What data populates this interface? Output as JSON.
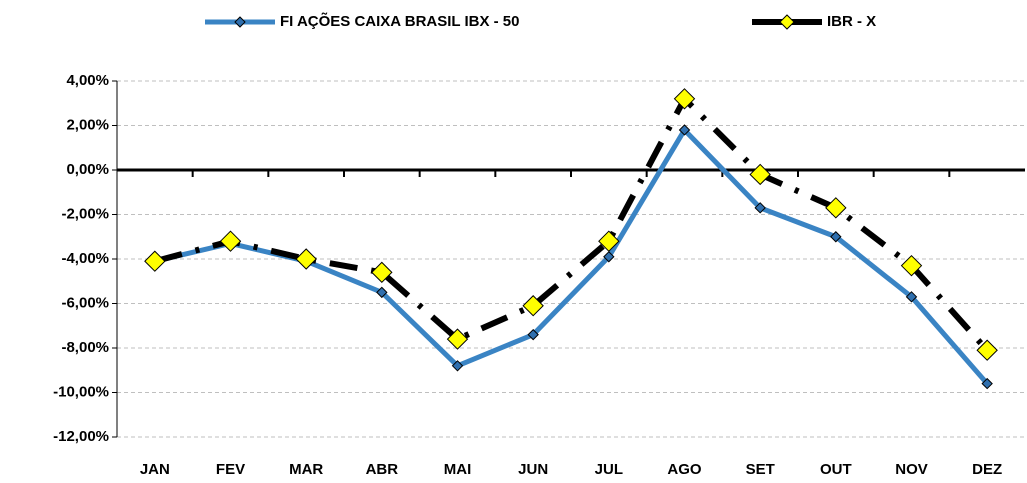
{
  "chart_data": {
    "type": "line",
    "categories": [
      "JAN",
      "FEV",
      "MAR",
      "ABR",
      "MAI",
      "JUN",
      "JUL",
      "AGO",
      "SET",
      "OUT",
      "NOV",
      "DEZ"
    ],
    "series": [
      {
        "name": "FI AÇÕES CAIXA BRASIL IBX - 50",
        "color": "#3a84c4",
        "marker_color": "#2f6fae",
        "dash": "solid",
        "values": [
          -4.1,
          -3.3,
          -4.1,
          -5.5,
          -8.8,
          -7.4,
          -3.9,
          1.8,
          -1.7,
          -3.0,
          -5.7,
          -9.6
        ]
      },
      {
        "name": "IBR - X",
        "color": "#000000",
        "marker_color": "#ffff00",
        "dash": "dashdot",
        "values": [
          -4.1,
          -3.2,
          -4.0,
          -4.6,
          -7.6,
          -6.1,
          -3.2,
          3.2,
          -0.2,
          -1.7,
          -4.3,
          -8.1
        ]
      }
    ],
    "ylim": [
      -12,
      4
    ],
    "yticks": [
      {
        "value": -12,
        "label": "-12,00%"
      },
      {
        "value": -10,
        "label": "-10,00%"
      },
      {
        "value": -8,
        "label": "-8,00%"
      },
      {
        "value": -6,
        "label": "-6,00%"
      },
      {
        "value": -4,
        "label": "-4,00%"
      },
      {
        "value": -2,
        "label": "-2,00%"
      },
      {
        "value": 0,
        "label": "0,00%"
      },
      {
        "value": 2,
        "label": "2,00%"
      },
      {
        "value": 4,
        "label": "4,00%"
      }
    ],
    "grid": true,
    "legend": "top"
  }
}
